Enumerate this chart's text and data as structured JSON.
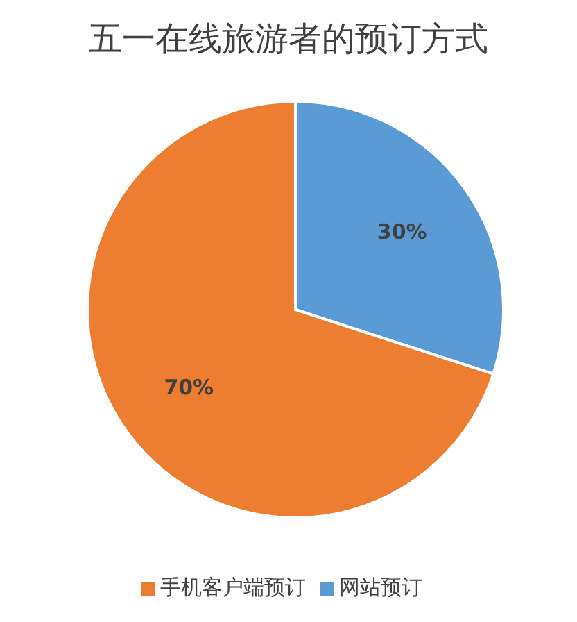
{
  "chart_data": {
    "type": "pie",
    "title": "五一在线旅游者的预订方式",
    "categories": [
      "网站预订",
      "手机客户端预订"
    ],
    "values": [
      30,
      70
    ],
    "colors": [
      "#5b9bd5",
      "#ed7d31"
    ],
    "value_labels": [
      "30%",
      "70%"
    ],
    "legend": "bottom"
  }
}
